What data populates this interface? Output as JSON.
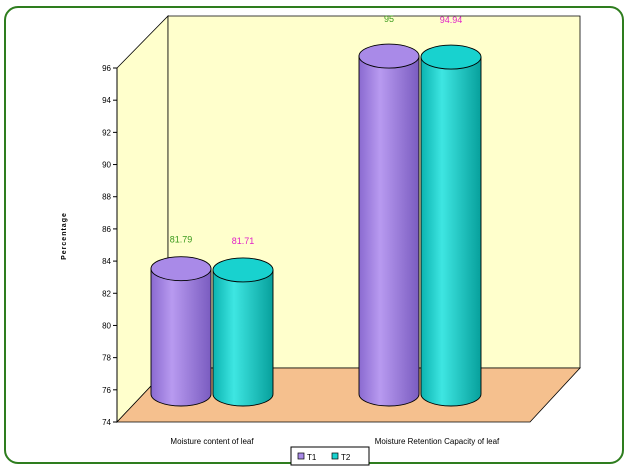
{
  "chart_data": {
    "type": "bar",
    "title": "",
    "xlabel": "",
    "ylabel": "Percentage",
    "ylim": [
      74,
      96
    ],
    "yticks": [
      74,
      76,
      78,
      80,
      82,
      84,
      86,
      88,
      90,
      92,
      94,
      96
    ],
    "categories": [
      "Moisture content of leaf",
      "Moisture Retention Capacity of leaf"
    ],
    "series": [
      {
        "name": "T1",
        "values": [
          81.79,
          95
        ],
        "labels": [
          "81.79",
          "95"
        ],
        "color": "#a98ae8",
        "label_color": "#3a9a1c"
      },
      {
        "name": "T2",
        "values": [
          81.71,
          94.94
        ],
        "labels": [
          "81.71",
          "94.94"
        ],
        "color": "#18d2cf",
        "label_color": "#e020c8"
      }
    ],
    "legend": "bottom-center",
    "colors": {
      "back_wall": "#ffffcc",
      "floor": "#f5c08e",
      "frame_border": "#2e7d1e"
    }
  }
}
